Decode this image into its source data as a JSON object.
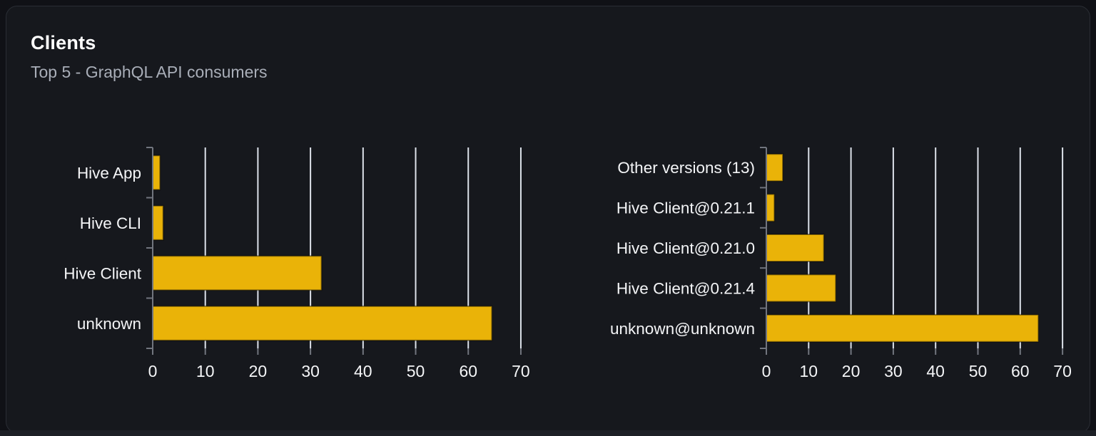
{
  "card": {
    "title": "Clients",
    "subtitle": "Top 5 - GraphQL API consumers"
  },
  "colors": {
    "bar": "#eab308",
    "bar_edge": "rgba(0,0,0,0.4)",
    "grid": "#dde2ea",
    "axis": "#71757e",
    "label": "#f4f5f7",
    "tick_label": "#f4f5f7",
    "title": "#ffffff",
    "subtitle": "#a9aeb8",
    "card_bg": "#16181d",
    "card_border": "#2a2d34",
    "page_bg": "#101116"
  },
  "chart_data": [
    {
      "type": "bar",
      "orientation": "horizontal",
      "name": "clients-by-name",
      "categories": [
        "Hive App",
        "Hive CLI",
        "Hive Client",
        "unknown"
      ],
      "values": [
        1.4,
        2.0,
        32.1,
        64.5
      ],
      "xlim": [
        0,
        71.5
      ],
      "xticks": [
        0,
        10,
        20,
        30,
        40,
        50,
        60,
        70
      ],
      "grid": true,
      "legend": "none",
      "xlabel": "",
      "ylabel": ""
    },
    {
      "type": "bar",
      "orientation": "horizontal",
      "name": "clients-by-version",
      "categories": [
        "Other versions (13)",
        "Hive Client@0.21.1",
        "Hive Client@0.21.0",
        "Hive Client@0.21.4",
        "unknown@unknown"
      ],
      "values": [
        3.9,
        1.9,
        13.6,
        16.4,
        64.3
      ],
      "xlim": [
        0,
        71.5
      ],
      "xticks": [
        0,
        10,
        20,
        30,
        40,
        50,
        60,
        70
      ],
      "grid": true,
      "legend": "none",
      "xlabel": "",
      "ylabel": ""
    }
  ]
}
